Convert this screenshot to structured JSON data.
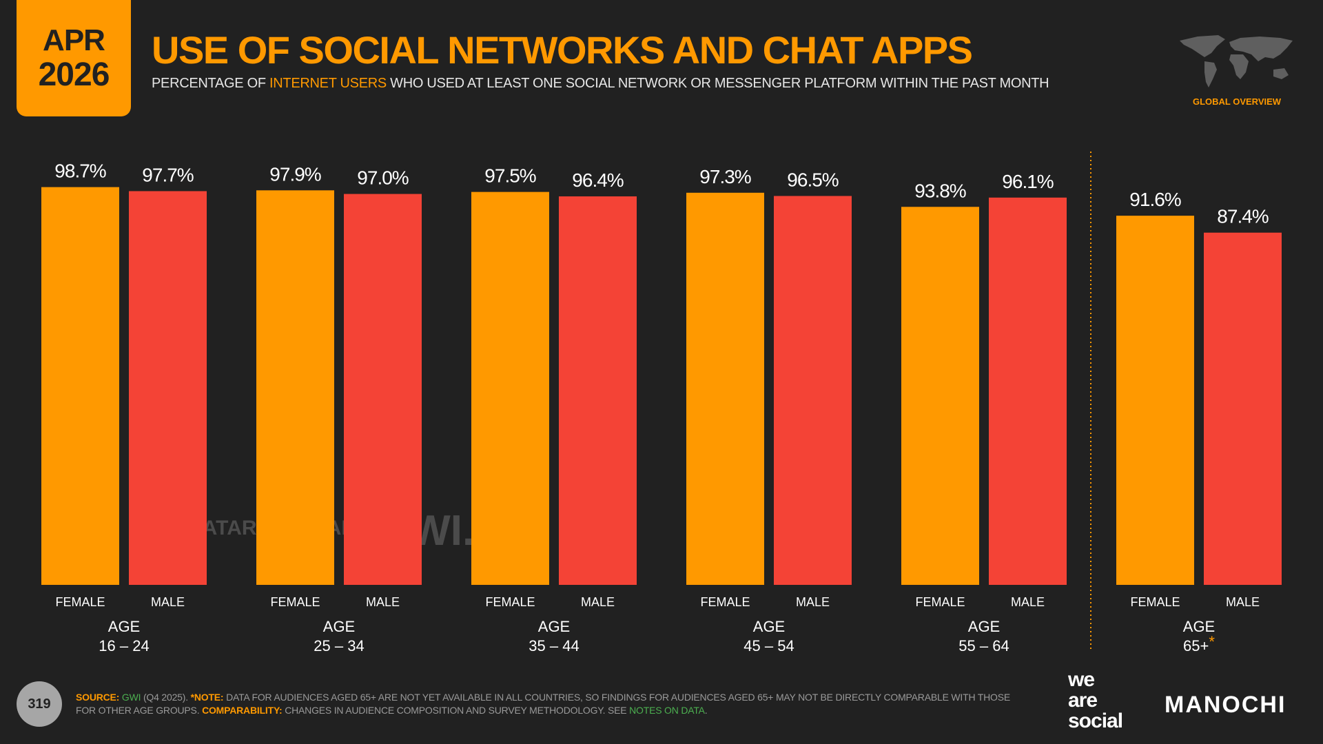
{
  "header": {
    "date_month": "APR",
    "date_year": "2026",
    "title": "USE OF SOCIAL NETWORKS AND CHAT APPS",
    "subtitle_pre": "PERCENTAGE OF ",
    "subtitle_highlight": "INTERNET USERS",
    "subtitle_post": " WHO USED AT LEAST ONE SOCIAL NETWORK OR MESSENGER PLATFORM WITHIN THE PAST MONTH",
    "region_label": "GLOBAL OVERVIEW",
    "map_icon": "world-map-icon"
  },
  "watermarks": {
    "datareportal": "DATAREPORTAL",
    "gwi": "GWI."
  },
  "chart_data": {
    "type": "bar",
    "categories": [
      "AGE 16 – 24",
      "AGE 25 – 34",
      "AGE 35 – 44",
      "AGE 45 – 54",
      "AGE 55 – 64",
      "AGE 65+*"
    ],
    "group_labels": [
      {
        "line1": "AGE",
        "line2": "16 – 24",
        "asterisk": ""
      },
      {
        "line1": "AGE",
        "line2": "25 – 34",
        "asterisk": ""
      },
      {
        "line1": "AGE",
        "line2": "35 – 44",
        "asterisk": ""
      },
      {
        "line1": "AGE",
        "line2": "45 – 54",
        "asterisk": ""
      },
      {
        "line1": "AGE",
        "line2": "55 – 64",
        "asterisk": ""
      },
      {
        "line1": "AGE",
        "line2": "65+",
        "asterisk": "*"
      }
    ],
    "series": [
      {
        "name": "FEMALE",
        "color": "#FF9900",
        "values": [
          98.7,
          97.9,
          97.5,
          97.3,
          93.8,
          91.6
        ],
        "labels": [
          "98.7%",
          "97.9%",
          "97.5%",
          "97.3%",
          "93.8%",
          "91.6%"
        ]
      },
      {
        "name": "MALE",
        "color": "#F44336",
        "values": [
          97.7,
          97.0,
          96.4,
          96.5,
          96.1,
          87.4
        ],
        "labels": [
          "97.7%",
          "97.0%",
          "96.4%",
          "96.5%",
          "96.1%",
          "87.4%"
        ]
      }
    ],
    "ylim": [
      0,
      100
    ],
    "grid": false,
    "value_labels": true,
    "separator_before_last_group": true
  },
  "footer": {
    "page_number": "319",
    "source_label": "SOURCE:",
    "source_link": "GWI",
    "source_detail": " (Q4 2025). ",
    "note_label": "*NOTE:",
    "note_text": " DATA FOR AUDIENCES AGED 65+ ARE NOT YET AVAILABLE IN ALL COUNTRIES, SO FINDINGS FOR AUDIENCES AGED 65+ MAY NOT BE DIRECTLY COMPARABLE WITH THOSE FOR OTHER AGE GROUPS. ",
    "comparability_label": "COMPARABILITY:",
    "comparability_text": " CHANGES IN AUDIENCE COMPOSITION AND SURVEY METHODOLOGY. SEE ",
    "notes_link": "NOTES ON DATA",
    "end": "."
  },
  "logos": {
    "we_are_social": [
      "we",
      "are",
      "social"
    ],
    "manochi": "MANOCHI"
  }
}
